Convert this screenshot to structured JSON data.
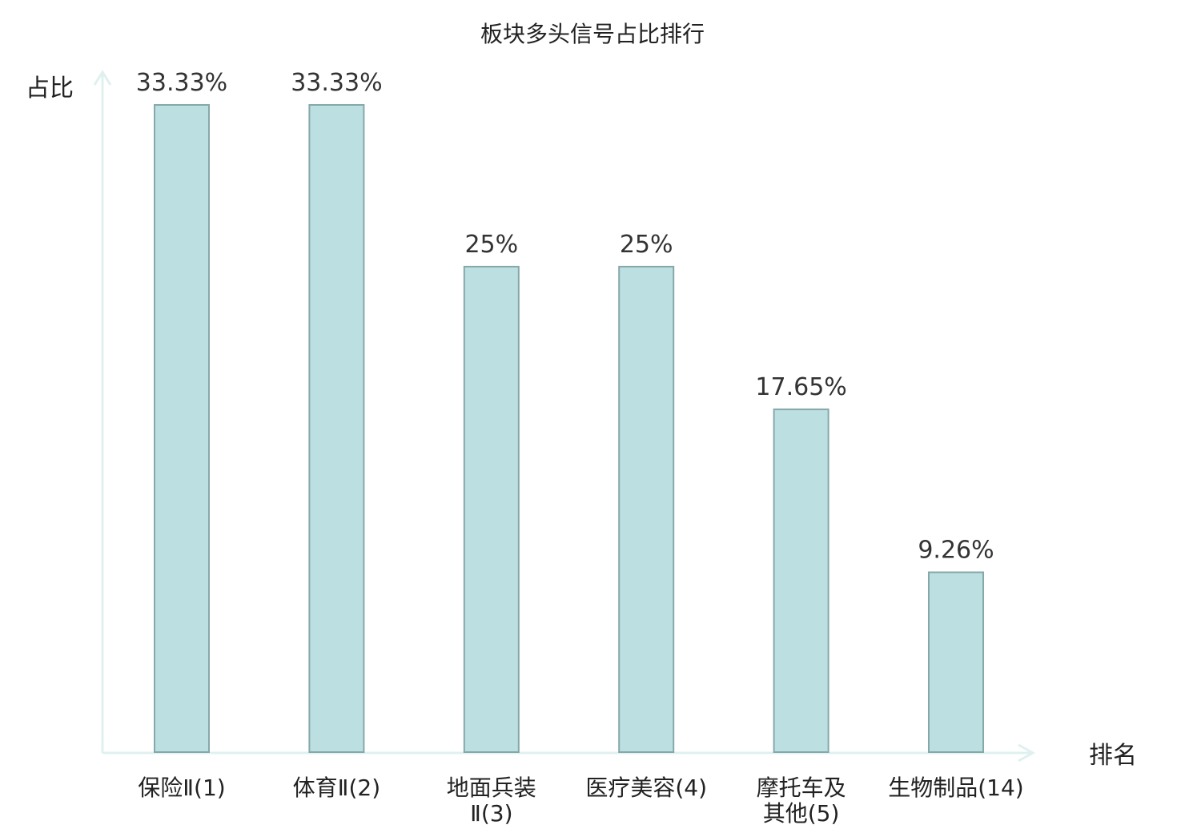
{
  "chart_data": {
    "type": "bar",
    "title": "板块多头信号占比排行",
    "ylabel": "占比",
    "xlabel": "排名",
    "ylim": [
      0,
      33.33
    ],
    "grid": false,
    "legend": "none",
    "colors": {
      "bar_fill": "#bce0e2",
      "bar_stroke": "#86a8aa",
      "axis": "#dff1ef",
      "label_default": "#222222",
      "label_highlight": "#e02020"
    },
    "bars": [
      {
        "name": "保险Ⅱ",
        "rank": "(1)",
        "value": 33.33,
        "label": "33.33%",
        "highlight": false
      },
      {
        "name": "体育Ⅱ",
        "rank": "(2)",
        "value": 33.33,
        "label": "33.33%",
        "highlight": false
      },
      {
        "name": "地面兵装",
        "name2": "Ⅱ",
        "rank": "(3)",
        "value": 25,
        "label": "25%",
        "highlight": false
      },
      {
        "name": "医疗美容",
        "rank": "(4)",
        "value": 25,
        "label": "25%",
        "highlight": false
      },
      {
        "name": "摩托车及",
        "name2": "其他",
        "rank": "(5)",
        "value": 17.65,
        "label": "17.65%",
        "highlight": false
      },
      {
        "name": "生物制品",
        "rank": "(14)",
        "value": 9.26,
        "label": "9.26%",
        "highlight": true
      }
    ]
  }
}
